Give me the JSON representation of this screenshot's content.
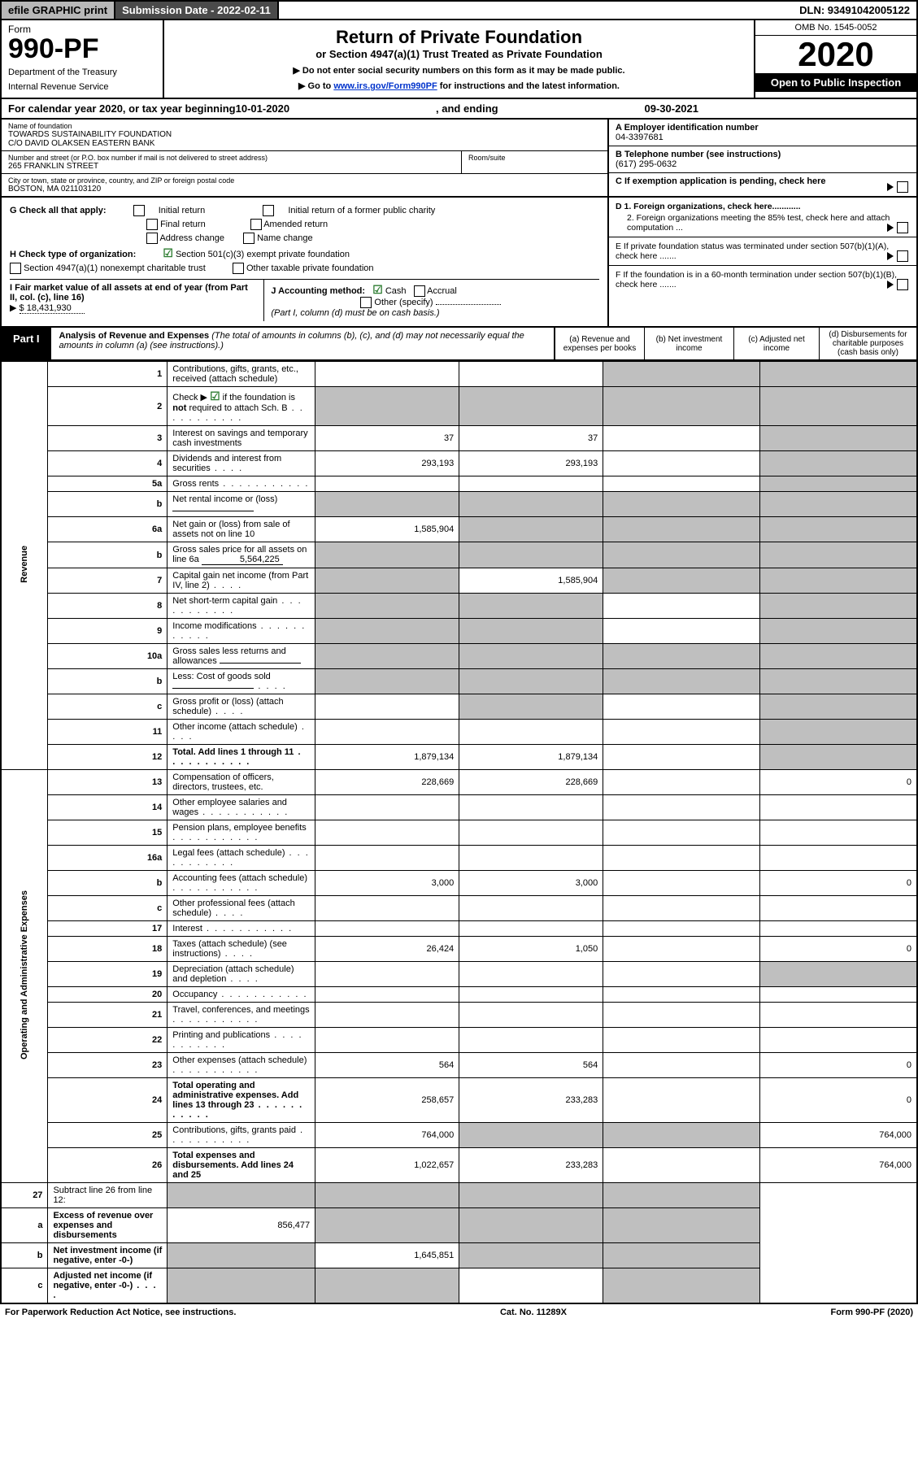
{
  "colors": {
    "black": "#000000",
    "white": "#ffffff",
    "greyBtn": "#b8b8b8",
    "darkGrey": "#4a4a4a",
    "cellGrey": "#bfbfbf",
    "link": "#0033cc",
    "green": "#2e7d32"
  },
  "topbar": {
    "efile": "efile GRAPHIC print",
    "submissionLabel": "Submission Date - 2022-02-11",
    "dln": "DLN: 93491042005122"
  },
  "header": {
    "formWord": "Form",
    "formNum": "990-PF",
    "dept": "Department of the Treasury",
    "irs": "Internal Revenue Service",
    "title": "Return of Private Foundation",
    "subtitle": "or Section 4947(a)(1) Trust Treated as Private Foundation",
    "notice1": "▶ Do not enter social security numbers on this form as it may be made public.",
    "notice2_pre": "▶ Go to ",
    "notice2_link": "www.irs.gov/Form990PF",
    "notice2_post": " for instructions and the latest information.",
    "omb": "OMB No. 1545-0052",
    "year": "2020",
    "openPub": "Open to Public Inspection"
  },
  "calRow": {
    "pre": "For calendar year 2020, or tax year beginning ",
    "begin": "10-01-2020",
    "mid": ", and ending ",
    "end": "09-30-2021"
  },
  "id": {
    "nameLbl": "Name of foundation",
    "name1": "TOWARDS SUSTAINABILITY FOUNDATION",
    "name2": "C/O DAVID OLAKSEN EASTERN BANK",
    "addrLbl": "Number and street (or P.O. box number if mail is not delivered to street address)",
    "addr": "265 FRANKLIN STREET",
    "roomLbl": "Room/suite",
    "cityLbl": "City or town, state or province, country, and ZIP or foreign postal code",
    "city": "BOSTON, MA  021103120",
    "einLbl": "A Employer identification number",
    "ein": "04-3397681",
    "telLbl": "B Telephone number (see instructions)",
    "tel": "(617) 295-0632",
    "cLbl": "C If exemption application is pending, check here"
  },
  "checks": {
    "gLbl": "G Check all that apply:",
    "g": [
      "Initial return",
      "Initial return of a former public charity",
      "Final return",
      "Amended return",
      "Address change",
      "Name change"
    ],
    "hLbl": "H Check type of organization:",
    "h1": "Section 501(c)(3) exempt private foundation",
    "h2": "Section 4947(a)(1) nonexempt charitable trust",
    "h3": "Other taxable private foundation",
    "iLbl": "I Fair market value of all assets at end of year (from Part II, col. (c), line 16)",
    "iVal": "$  18,431,930",
    "jLbl": "J Accounting method:",
    "jCash": "Cash",
    "jAccrual": "Accrual",
    "jOther": "Other (specify)",
    "jNote": "(Part I, column (d) must be on cash basis.)",
    "d1": "D 1. Foreign organizations, check here............",
    "d2": "2. Foreign organizations meeting the 85% test, check here and attach computation ...",
    "e": "E  If private foundation status was terminated under section 507(b)(1)(A), check here .......",
    "f": "F  If the foundation is in a 60-month termination under section 507(b)(1)(B), check here .......",
    "iTri": "▶"
  },
  "part1": {
    "badge": "Part I",
    "title": "Analysis of Revenue and Expenses",
    "titleNote": " (The total of amounts in columns (b), (c), and (d) may not necessarily equal the amounts in column (a) (see instructions).)",
    "cols": {
      "a": "(a)   Revenue and expenses per books",
      "b": "(b)   Net investment income",
      "c": "(c)  Adjusted net income",
      "d": "(d)  Disbursements for charitable purposes (cash basis only)"
    }
  },
  "sideLabels": {
    "rev": "Revenue",
    "exp": "Operating and Administrative Expenses"
  },
  "rows": [
    {
      "n": "1",
      "desc": "Contributions, gifts, grants, etc., received (attach schedule)",
      "a": "",
      "b": "",
      "c": "grey",
      "d": "grey"
    },
    {
      "n": "2",
      "desc": "Check ▶ ☑ if the foundation is not required to attach Sch. B",
      "dots": true,
      "a": "grey",
      "b": "grey",
      "c": "grey",
      "d": "grey"
    },
    {
      "n": "3",
      "desc": "Interest on savings and temporary cash investments",
      "a": "37",
      "b": "37",
      "c": "",
      "d": "grey"
    },
    {
      "n": "4",
      "desc": "Dividends and interest from securities",
      "dots": "short",
      "a": "293,193",
      "b": "293,193",
      "c": "",
      "d": "grey"
    },
    {
      "n": "5a",
      "desc": "Gross rents",
      "dots": true,
      "a": "",
      "b": "",
      "c": "",
      "d": "grey"
    },
    {
      "n": "b",
      "desc": "Net rental income or (loss)",
      "inset": "",
      "a": "grey",
      "b": "grey",
      "c": "grey",
      "d": "grey"
    },
    {
      "n": "6a",
      "desc": "Net gain or (loss) from sale of assets not on line 10",
      "a": "1,585,904",
      "b": "grey",
      "c": "grey",
      "d": "grey"
    },
    {
      "n": "b",
      "desc": "Gross sales price for all assets on line 6a",
      "inset": "5,564,225",
      "a": "grey",
      "b": "grey",
      "c": "grey",
      "d": "grey"
    },
    {
      "n": "7",
      "desc": "Capital gain net income (from Part IV, line 2)",
      "dots": "short",
      "a": "grey",
      "b": "1,585,904",
      "c": "grey",
      "d": "grey"
    },
    {
      "n": "8",
      "desc": "Net short-term capital gain",
      "dots": true,
      "a": "grey",
      "b": "grey",
      "c": "",
      "d": "grey"
    },
    {
      "n": "9",
      "desc": "Income modifications",
      "dots": true,
      "a": "grey",
      "b": "grey",
      "c": "",
      "d": "grey"
    },
    {
      "n": "10a",
      "desc": "Gross sales less returns and allowances",
      "inset": "",
      "a": "grey",
      "b": "grey",
      "c": "grey",
      "d": "grey"
    },
    {
      "n": "b",
      "desc": "Less: Cost of goods sold",
      "dots": "short",
      "inset": "",
      "a": "grey",
      "b": "grey",
      "c": "grey",
      "d": "grey"
    },
    {
      "n": "c",
      "desc": "Gross profit or (loss) (attach schedule)",
      "dots": "short",
      "a": "",
      "b": "grey",
      "c": "",
      "d": "grey"
    },
    {
      "n": "11",
      "desc": "Other income (attach schedule)",
      "dots": "short",
      "a": "",
      "b": "",
      "c": "",
      "d": "grey"
    },
    {
      "n": "12",
      "desc": "Total. Add lines 1 through 11",
      "bold": true,
      "dots": true,
      "a": "1,879,134",
      "b": "1,879,134",
      "c": "",
      "d": "grey"
    }
  ],
  "expRows": [
    {
      "n": "13",
      "desc": "Compensation of officers, directors, trustees, etc.",
      "a": "228,669",
      "b": "228,669",
      "c": "",
      "d": "0"
    },
    {
      "n": "14",
      "desc": "Other employee salaries and wages",
      "dots": true,
      "a": "",
      "b": "",
      "c": "",
      "d": ""
    },
    {
      "n": "15",
      "desc": "Pension plans, employee benefits",
      "dots": true,
      "a": "",
      "b": "",
      "c": "",
      "d": ""
    },
    {
      "n": "16a",
      "desc": "Legal fees (attach schedule)",
      "dots": true,
      "a": "",
      "b": "",
      "c": "",
      "d": ""
    },
    {
      "n": "b",
      "desc": "Accounting fees (attach schedule)",
      "dots": true,
      "a": "3,000",
      "b": "3,000",
      "c": "",
      "d": "0"
    },
    {
      "n": "c",
      "desc": "Other professional fees (attach schedule)",
      "dots": "short",
      "a": "",
      "b": "",
      "c": "",
      "d": ""
    },
    {
      "n": "17",
      "desc": "Interest",
      "dots": true,
      "a": "",
      "b": "",
      "c": "",
      "d": ""
    },
    {
      "n": "18",
      "desc": "Taxes (attach schedule) (see instructions)",
      "dots": "short",
      "a": "26,424",
      "b": "1,050",
      "c": "",
      "d": "0"
    },
    {
      "n": "19",
      "desc": "Depreciation (attach schedule) and depletion",
      "dots": "short",
      "a": "",
      "b": "",
      "c": "",
      "d": "grey"
    },
    {
      "n": "20",
      "desc": "Occupancy",
      "dots": true,
      "a": "",
      "b": "",
      "c": "",
      "d": ""
    },
    {
      "n": "21",
      "desc": "Travel, conferences, and meetings",
      "dots": true,
      "a": "",
      "b": "",
      "c": "",
      "d": ""
    },
    {
      "n": "22",
      "desc": "Printing and publications",
      "dots": true,
      "a": "",
      "b": "",
      "c": "",
      "d": ""
    },
    {
      "n": "23",
      "desc": "Other expenses (attach schedule)",
      "dots": true,
      "a": "564",
      "b": "564",
      "c": "",
      "d": "0"
    },
    {
      "n": "24",
      "desc": "Total operating and administrative expenses. Add lines 13 through 23",
      "bold": true,
      "dots": true,
      "a": "258,657",
      "b": "233,283",
      "c": "",
      "d": "0"
    },
    {
      "n": "25",
      "desc": "Contributions, gifts, grants paid",
      "dots": true,
      "a": "764,000",
      "b": "grey",
      "c": "grey",
      "d": "764,000"
    },
    {
      "n": "26",
      "desc": "Total expenses and disbursements. Add lines 24 and 25",
      "bold": true,
      "a": "1,022,657",
      "b": "233,283",
      "c": "",
      "d": "764,000"
    }
  ],
  "netRows": [
    {
      "n": "27",
      "desc": "Subtract line 26 from line 12:",
      "a": "grey",
      "b": "grey",
      "c": "grey",
      "d": "grey"
    },
    {
      "n": "a",
      "desc": "Excess of revenue over expenses and disbursements",
      "bold": true,
      "a": "856,477",
      "b": "grey",
      "c": "grey",
      "d": "grey"
    },
    {
      "n": "b",
      "desc": "Net investment income (if negative, enter -0-)",
      "bold": true,
      "a": "grey",
      "b": "1,645,851",
      "c": "grey",
      "d": "grey"
    },
    {
      "n": "c",
      "desc": "Adjusted net income (if negative, enter -0-)",
      "bold": true,
      "dots": "short",
      "a": "grey",
      "b": "grey",
      "c": "",
      "d": "grey"
    }
  ],
  "footer": {
    "left": "For Paperwork Reduction Act Notice, see instructions.",
    "mid": "Cat. No. 11289X",
    "right": "Form 990-PF (2020)"
  }
}
